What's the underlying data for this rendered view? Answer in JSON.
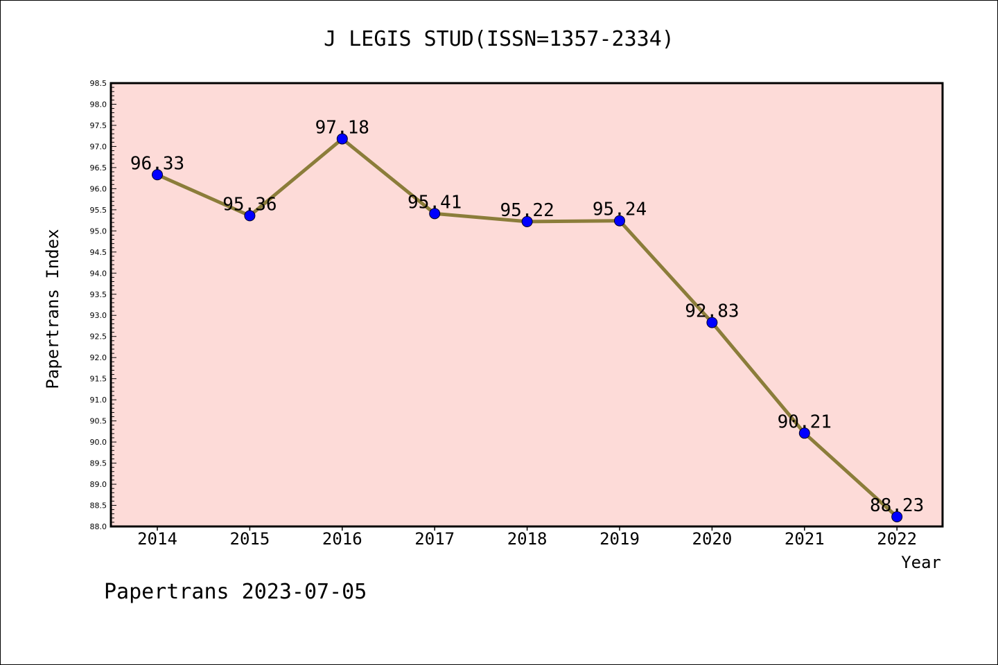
{
  "chart_data": {
    "type": "line",
    "title": "J LEGIS STUD(ISSN=1357-2334)",
    "xlabel": "Year",
    "ylabel": "Papertrans Index",
    "footer": "Papertrans 2023-07-05",
    "categories": [
      "2014",
      "2015",
      "2016",
      "2017",
      "2018",
      "2019",
      "2020",
      "2021",
      "2022"
    ],
    "series": [
      {
        "values": [
          96.33,
          95.36,
          97.18,
          95.41,
          95.22,
          95.24,
          92.83,
          90.21,
          88.23
        ],
        "labels": [
          "96.33",
          "95.36",
          "97.18",
          "95.41",
          "95.22",
          "95.24",
          "92.83",
          "90.21",
          "88.23"
        ],
        "line_color": "#8b7d3a",
        "marker_color": "#0000ff"
      }
    ],
    "ylim": [
      88.0,
      98.5
    ],
    "yticks": [
      "88.0",
      "88.5",
      "89.0",
      "89.5",
      "90.0",
      "90.5",
      "91.0",
      "91.5",
      "92.0",
      "92.5",
      "93.0",
      "93.5",
      "94.0",
      "94.5",
      "95.0",
      "95.5",
      "96.0",
      "96.5",
      "97.0",
      "97.5",
      "98.0",
      "98.5"
    ],
    "plot_background": "#fddbd8",
    "grid": false,
    "legend": "none"
  }
}
